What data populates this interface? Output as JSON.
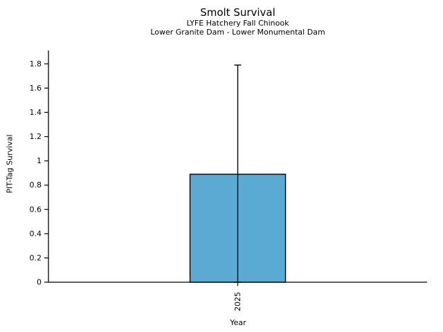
{
  "chart_data": {
    "type": "bar",
    "title": "Smolt Survival",
    "subtitle": [
      "LYFE Hatchery Fall Chinook",
      "Lower Granite Dam - Lower Monumental Dam"
    ],
    "xlabel": "Year",
    "ylabel": "PIT-Tag Survival",
    "categories": [
      "2025"
    ],
    "values": [
      0.89
    ],
    "error_bars": [
      {
        "lower": 0.0,
        "upper": 1.79
      }
    ],
    "ylim": [
      0,
      1.91
    ],
    "yticks": [
      0,
      0.2,
      0.4,
      0.6,
      0.8,
      1,
      1.2,
      1.4,
      1.6,
      1.8
    ],
    "ytick_labels": [
      "0",
      "0.2",
      "0.4",
      "0.6",
      "0.8",
      "1",
      "1.2",
      "1.4",
      "1.6",
      "1.8"
    ],
    "xtick_rotation": 90,
    "grid": false,
    "legend": null,
    "bar_color": "#5AAAD4",
    "bar_edge_color": "#000000",
    "axis_color": "#000000",
    "background_color": "#ffffff"
  }
}
